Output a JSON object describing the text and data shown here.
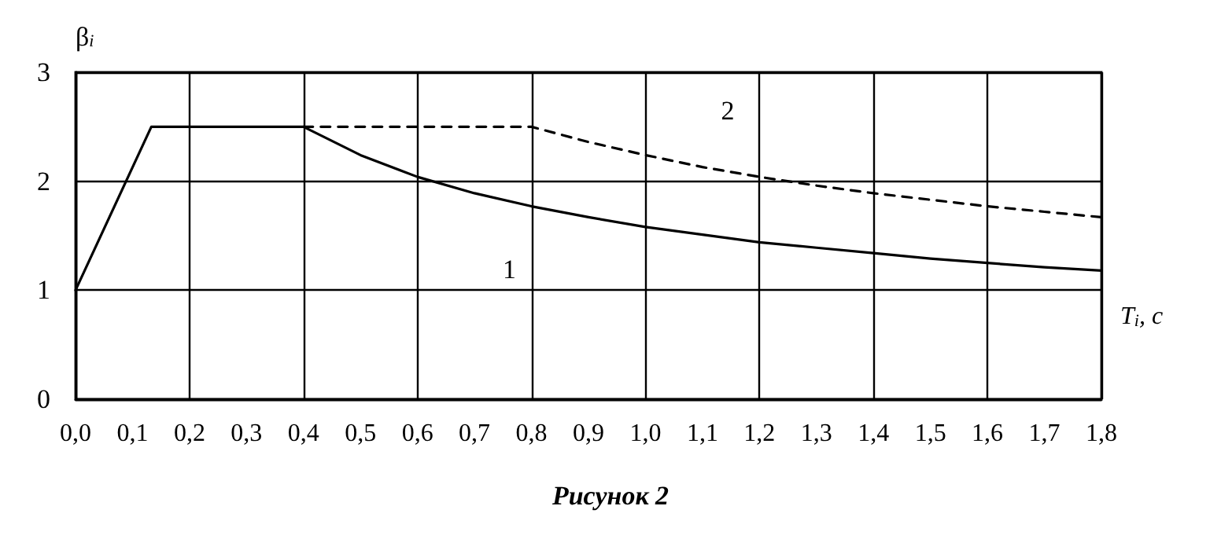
{
  "chart_data": {
    "type": "line",
    "ylabel": "β$_{i}$",
    "xlabel": "T$_{i}$, с",
    "annotations": [
      "Рисунок 2"
    ],
    "series": [
      {
        "name": "1",
        "color": "#000000",
        "line_style": "solid",
        "x": [
          0,
          0.133,
          0.4,
          0.5,
          0.6,
          0.7,
          0.8,
          0.9,
          1.0,
          1.1,
          1.2,
          1.3,
          1.4,
          1.5,
          1.6,
          1.7,
          1.8
        ],
        "values": [
          1,
          2.5,
          2.5,
          2.24,
          2.04,
          1.89,
          1.77,
          1.67,
          1.58,
          1.51,
          1.44,
          1.39,
          1.34,
          1.29,
          1.25,
          1.21,
          1.18
        ]
      },
      {
        "name": "2",
        "color": "#000000",
        "line_style": "dashed",
        "x": [
          0.4,
          0.8,
          0.9,
          1.0,
          1.1,
          1.2,
          1.3,
          1.4,
          1.5,
          1.6,
          1.7,
          1.8
        ],
        "values": [
          2.5,
          2.5,
          2.36,
          2.24,
          2.13,
          2.04,
          1.96,
          1.89,
          1.83,
          1.77,
          1.72,
          1.67
        ]
      }
    ],
    "xlim": [
      0,
      1.8
    ],
    "xticks": [
      {
        "value": 0,
        "label": "0,0"
      },
      {
        "value": 0.1,
        "label": "0,1"
      },
      {
        "value": 0.2,
        "label": "0,2"
      },
      {
        "value": 0.3,
        "label": "0,3"
      },
      {
        "value": 0.4,
        "label": "0,4"
      },
      {
        "value": 0.5,
        "label": "0,5"
      },
      {
        "value": 0.6,
        "label": "0,6"
      },
      {
        "value": 0.7,
        "label": "0,7"
      },
      {
        "value": 0.8,
        "label": "0,8"
      },
      {
        "value": 0.9,
        "label": "0,9"
      },
      {
        "value": 1.0,
        "label": "1,0"
      },
      {
        "value": 1.1,
        "label": "1,1"
      },
      {
        "value": 1.2,
        "label": "1,2"
      },
      {
        "value": 1.3,
        "label": "1,3"
      },
      {
        "value": 1.4,
        "label": "1,4"
      },
      {
        "value": 1.5,
        "label": "1,5"
      },
      {
        "value": 1.6,
        "label": "1,6"
      },
      {
        "value": 1.7,
        "label": "1,7"
      },
      {
        "value": 1.8,
        "label": "1,8"
      }
    ],
    "ylim": [
      0,
      3
    ],
    "yticks": [
      0,
      1,
      2,
      3
    ],
    "grid": true,
    "legend": false,
    "marker": "none"
  }
}
